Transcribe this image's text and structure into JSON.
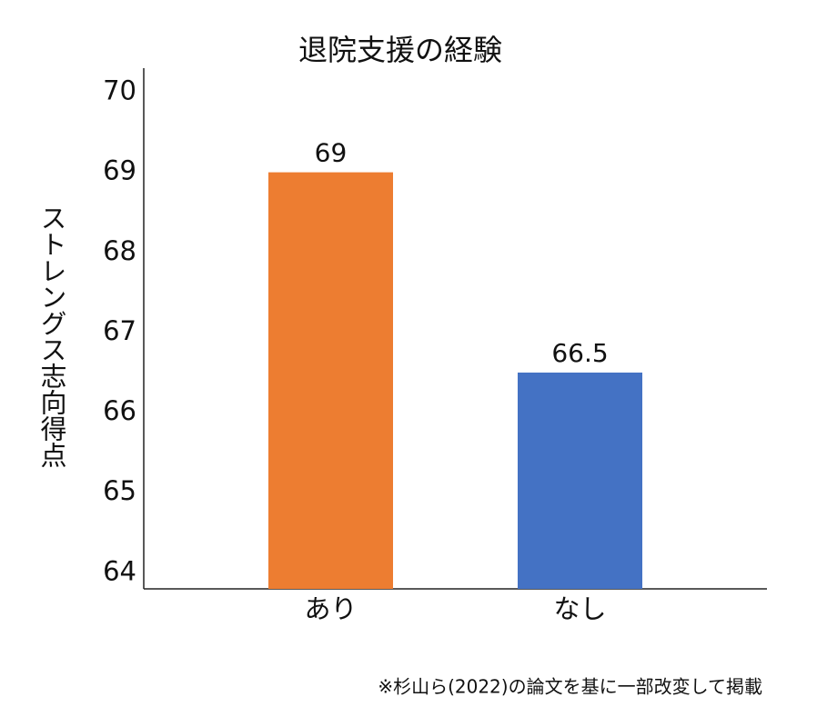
{
  "chart_data": {
    "type": "bar",
    "title": "退院支援の経験",
    "y_label": "ストレングス志向得点",
    "categories": [
      "あり",
      "なし"
    ],
    "values": [
      69,
      66.5
    ],
    "colors": [
      "#ed7d31",
      "#4472c4"
    ],
    "ylim": [
      63.8,
      70.3
    ],
    "yticks": [
      64,
      65,
      66,
      67,
      68,
      69,
      70
    ],
    "grid": false,
    "note": "※杉山ら(2022)の論文を基に一部改変して掲載"
  }
}
